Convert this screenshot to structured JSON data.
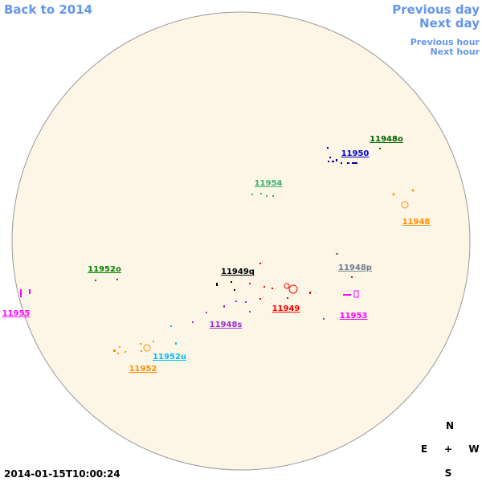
{
  "navigation": {
    "back": "Back to 2014",
    "previous_day": "Previous day",
    "next_day": "Next day",
    "previous_hour": "Previous hour",
    "next_hour": "Next hour"
  },
  "regions": [
    "11948o",
    "11950",
    "11954",
    "11948",
    "11952o",
    "11949q",
    "11948p",
    "11955",
    "11949",
    "11953",
    "11948s",
    "11952u",
    "11952"
  ],
  "compass": {
    "north": "N",
    "east": "E",
    "center": "+",
    "west": "W",
    "south": "S"
  },
  "timestamp": "2014-01-15T10:00:24"
}
